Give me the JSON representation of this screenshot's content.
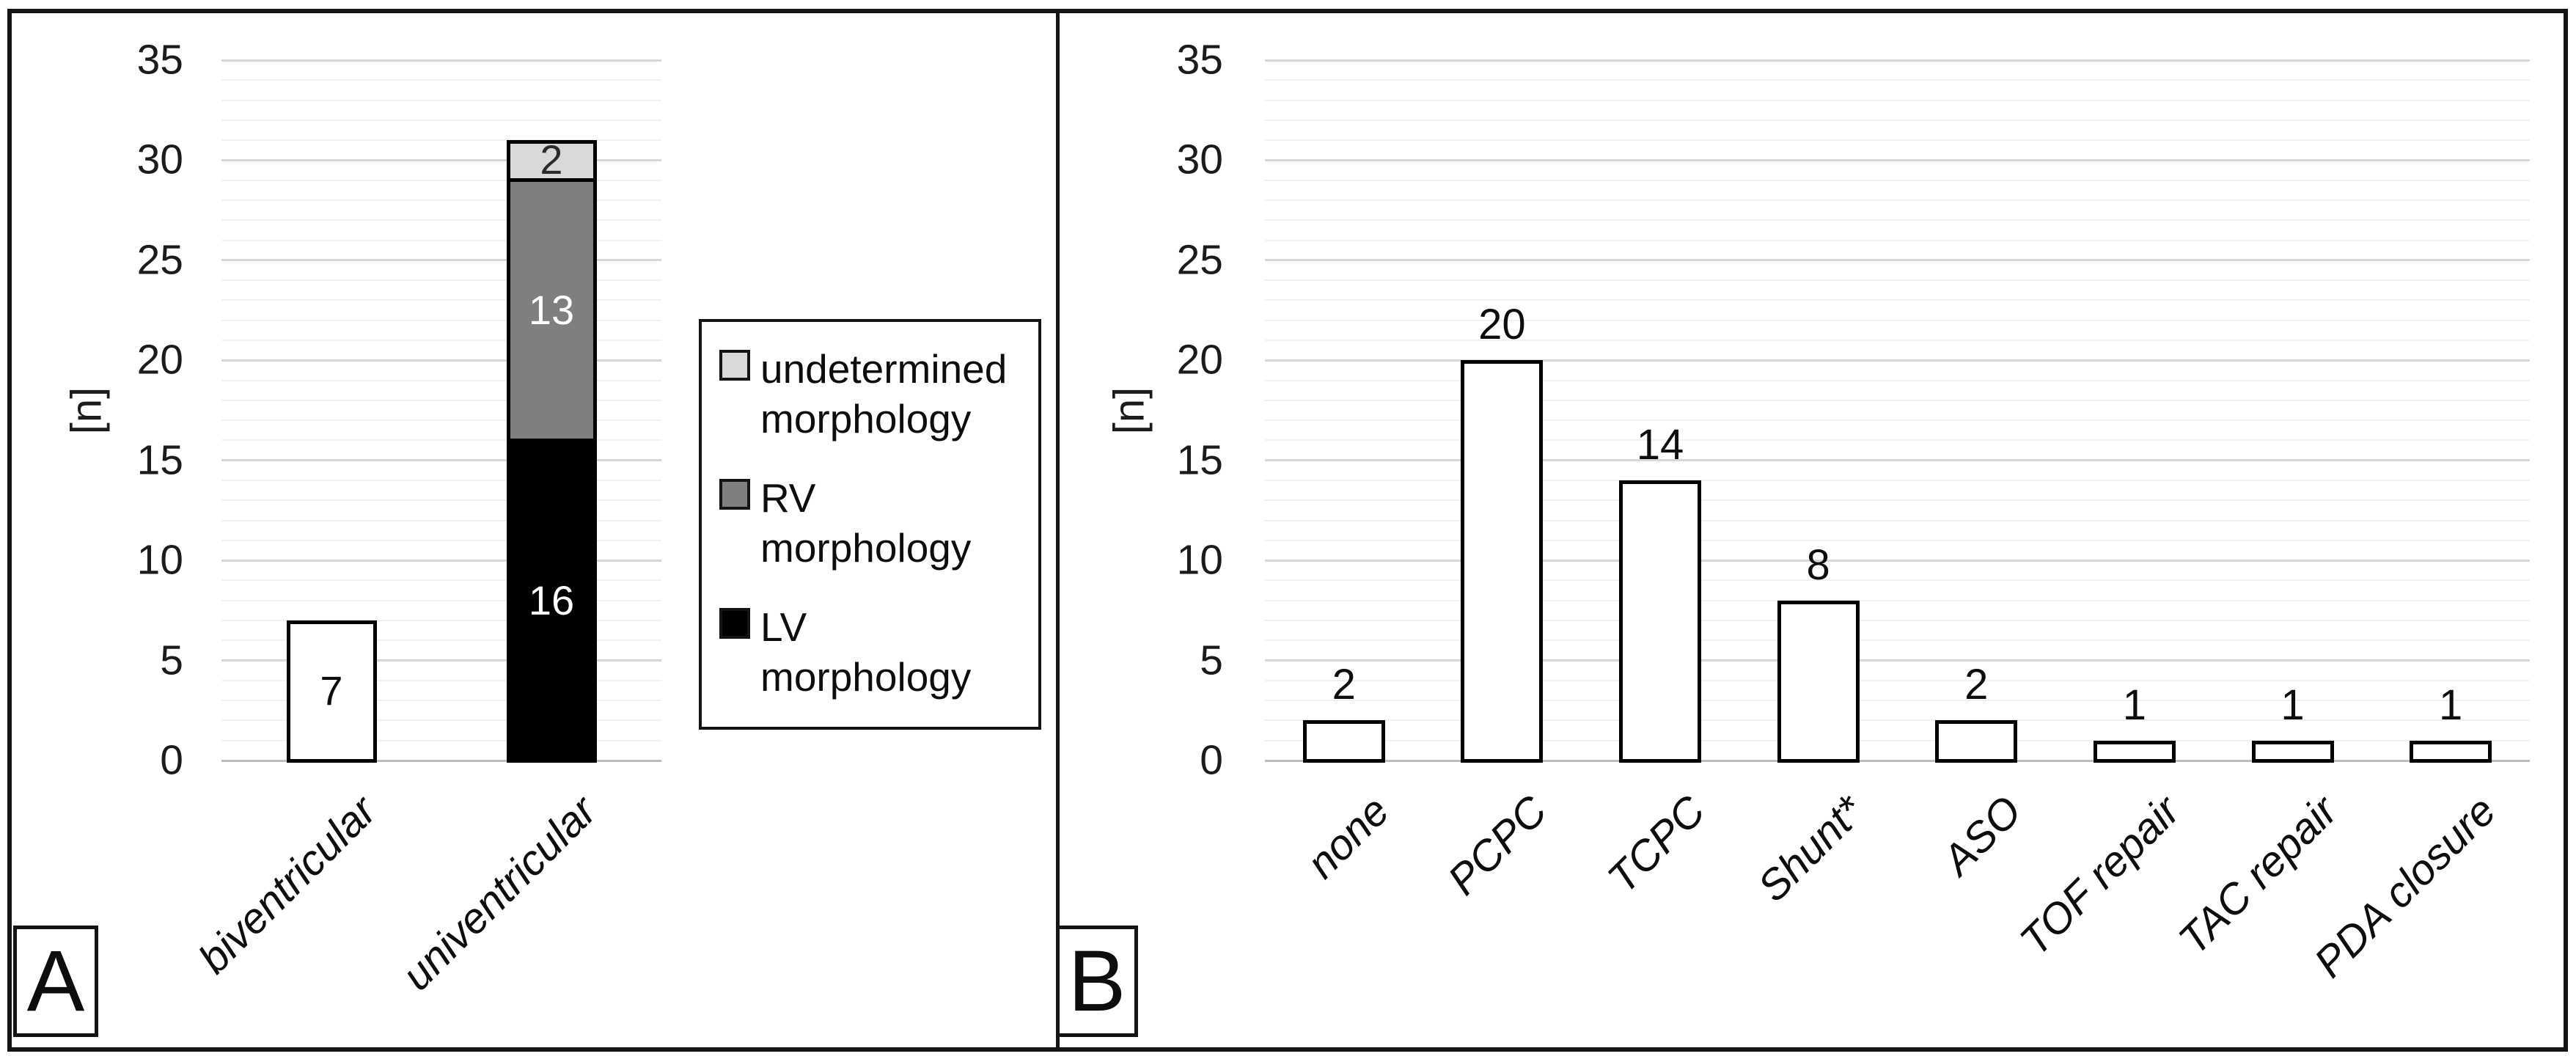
{
  "figure_title": "",
  "panel_letters": [
    "A",
    "B"
  ],
  "colors": {
    "background": "#ffffff",
    "frame": "#141414",
    "bar_border": "#000000",
    "minor_gridline": "#f1f1f1",
    "major_gridline": "#d7d7d7",
    "zero_line": "#bdbdbd",
    "lv_black": "#000000",
    "rv_gray": "#7f7f7f",
    "undetermined_light_gray": "#d9d9d9"
  },
  "chart_data": [
    {
      "panel": "A",
      "type": "bar",
      "stacked": true,
      "title": "",
      "xlabel": "",
      "ylabel": "[n]",
      "ylim": [
        0,
        35
      ],
      "ytick_step": 5,
      "minor_grid_unit": 1,
      "grid": true,
      "yticks": [
        0,
        5,
        10,
        15,
        20,
        25,
        30,
        35
      ],
      "categories": [
        "biventricular",
        "univentricular"
      ],
      "bars": [
        {
          "category": "biventricular",
          "total": 7,
          "segments": [
            {
              "series": "biventricular total",
              "value": 7,
              "fill": "#ffffff",
              "text": "#0d0d0d"
            }
          ]
        },
        {
          "category": "univentricular",
          "total": 31,
          "segments": [
            {
              "series": "LV morphology",
              "value": 16,
              "fill": "#000000",
              "text": "#ffffff"
            },
            {
              "series": "RV morphology",
              "value": 13,
              "fill": "#7f7f7f",
              "text": "#ffffff"
            },
            {
              "series": "undetermined morphology",
              "value": 2,
              "fill": "#d9d9d9",
              "text": "#2b2b2b"
            }
          ]
        }
      ],
      "value_labels": "inside",
      "legend": {
        "position": "right",
        "items": [
          {
            "label": "undetermined morphology",
            "color": "#d9d9d9"
          },
          {
            "label": "RV morphology",
            "color": "#7f7f7f"
          },
          {
            "label": "LV morphology",
            "color": "#000000"
          }
        ]
      }
    },
    {
      "panel": "B",
      "type": "bar",
      "stacked": false,
      "title": "",
      "xlabel": "",
      "ylabel": "[n]",
      "ylim": [
        0,
        35
      ],
      "ytick_step": 5,
      "minor_grid_unit": 1,
      "grid": true,
      "yticks": [
        0,
        5,
        10,
        15,
        20,
        25,
        30,
        35
      ],
      "categories": [
        "none",
        "PCPC",
        "TCPC",
        "Shunt*",
        "ASO",
        "TOF repair",
        "TAC repair",
        "PDA closure"
      ],
      "values": [
        2,
        20,
        14,
        8,
        2,
        1,
        1,
        1
      ],
      "bar_fill": "#ffffff",
      "value_labels": "above"
    }
  ]
}
